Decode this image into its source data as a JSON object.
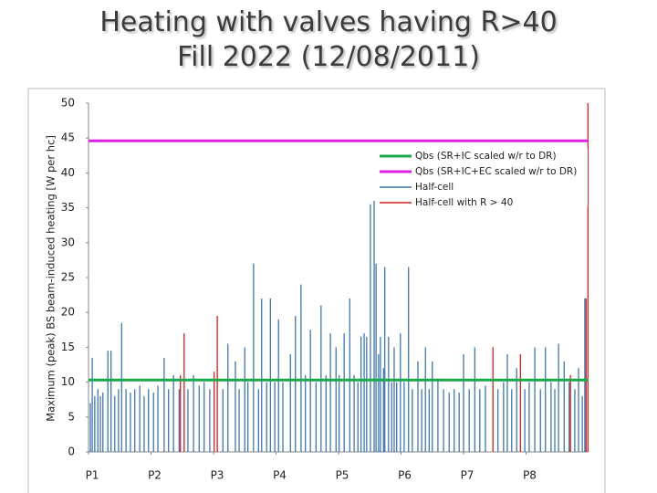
{
  "chart_data": {
    "type": "line",
    "title": "Heating with valves having R>40",
    "subtitle": "Fill 2022 (12/08/2011)",
    "y_label": "Maximum (peak) BS beam-induced heating [W per hc]",
    "xlim": [
      0,
      8
    ],
    "ylim": [
      0,
      50
    ],
    "xticks": [
      {
        "value": 0,
        "label": "P1"
      },
      {
        "value": 1,
        "label": "P2"
      },
      {
        "value": 2,
        "label": "P3"
      },
      {
        "value": 3,
        "label": "P4"
      },
      {
        "value": 4,
        "label": "P5"
      },
      {
        "value": 5,
        "label": "P6"
      },
      {
        "value": 6,
        "label": "P7"
      },
      {
        "value": 7,
        "label": "P8"
      }
    ],
    "yticks": [
      0,
      5,
      10,
      15,
      20,
      25,
      30,
      35,
      40,
      45,
      50
    ],
    "grid": false,
    "series": [
      {
        "name": "Qbs (SR+IC scaled w/r to DR)",
        "color": "#1aa84a",
        "style": "line",
        "x": [
          0,
          8
        ],
        "values": [
          10.3,
          10.3
        ]
      },
      {
        "name": "Qbs (SR+IC+EC scaled w/r to DR)",
        "color": "#e020e0",
        "style": "line",
        "x": [
          0,
          8
        ],
        "values": [
          44.6,
          44.6
        ]
      },
      {
        "name": "Half-cell",
        "color": "#3f77b0",
        "style": "spikes",
        "x": [
          0.03,
          0.06,
          0.1,
          0.15,
          0.19,
          0.23,
          0.31,
          0.36,
          0.42,
          0.48,
          0.53,
          0.6,
          0.67,
          0.74,
          0.82,
          0.89,
          0.96,
          1.04,
          1.11,
          1.21,
          1.28,
          1.36,
          1.45,
          1.59,
          1.68,
          1.77,
          1.85,
          1.94,
          2.15,
          2.23,
          2.35,
          2.41,
          2.5,
          2.55,
          2.64,
          2.72,
          2.77,
          2.85,
          2.91,
          2.98,
          3.04,
          3.11,
          3.23,
          3.31,
          3.4,
          3.47,
          3.55,
          3.64,
          3.72,
          3.8,
          3.87,
          3.96,
          4.01,
          4.09,
          4.18,
          4.25,
          4.31,
          4.36,
          4.41,
          4.45,
          4.51,
          4.57,
          4.6,
          4.64,
          4.67,
          4.72,
          4.74,
          4.8,
          4.85,
          4.89,
          4.93,
          4.99,
          5.05,
          5.12,
          5.18,
          5.27,
          5.33,
          5.39,
          5.45,
          5.5,
          5.59,
          5.68,
          5.77,
          5.85,
          5.93,
          6.0,
          6.09,
          6.18,
          6.26,
          6.35,
          6.55,
          6.64,
          6.7,
          6.77,
          6.85,
          6.98,
          7.05,
          7.14,
          7.23,
          7.31,
          7.4,
          7.46,
          7.52,
          7.61,
          7.69,
          7.78,
          7.84,
          7.9,
          7.94
        ],
        "values": [
          7,
          13.5,
          8,
          9,
          8,
          8.5,
          14.5,
          14.5,
          8,
          9,
          18.5,
          9,
          8.5,
          9,
          9.5,
          8,
          9,
          8.5,
          9.5,
          13.5,
          9,
          11,
          9,
          9,
          11,
          9.5,
          10,
          9,
          9,
          15.5,
          13,
          9,
          15,
          10,
          27,
          9,
          22,
          10,
          22,
          10,
          19,
          10,
          14,
          19.5,
          24,
          11,
          17.5,
          10,
          21,
          11,
          17,
          15,
          11,
          17,
          22,
          11,
          10,
          16.5,
          17,
          16.5,
          35.5,
          36,
          27,
          14,
          16.5,
          12,
          26.5,
          16.5,
          10,
          15,
          10,
          17,
          10,
          26.5,
          9,
          13,
          9,
          15,
          9,
          13,
          10.5,
          9,
          8.5,
          9,
          8.5,
          14,
          9,
          15,
          9,
          9.5,
          9,
          10,
          14,
          9,
          12,
          9,
          10,
          15,
          9,
          15,
          10,
          9,
          15.5,
          13,
          10,
          9,
          12,
          8,
          22
        ]
      },
      {
        "name": "Half-cell with R > 40",
        "color": "#d02020",
        "style": "spikes",
        "x": [
          1.47,
          1.53,
          2.01,
          2.06,
          6.47,
          6.91,
          7.71,
          7.96,
          7.99
        ],
        "values": [
          11,
          17,
          11.5,
          19.5,
          15,
          14,
          11,
          22,
          50
        ]
      }
    ]
  }
}
